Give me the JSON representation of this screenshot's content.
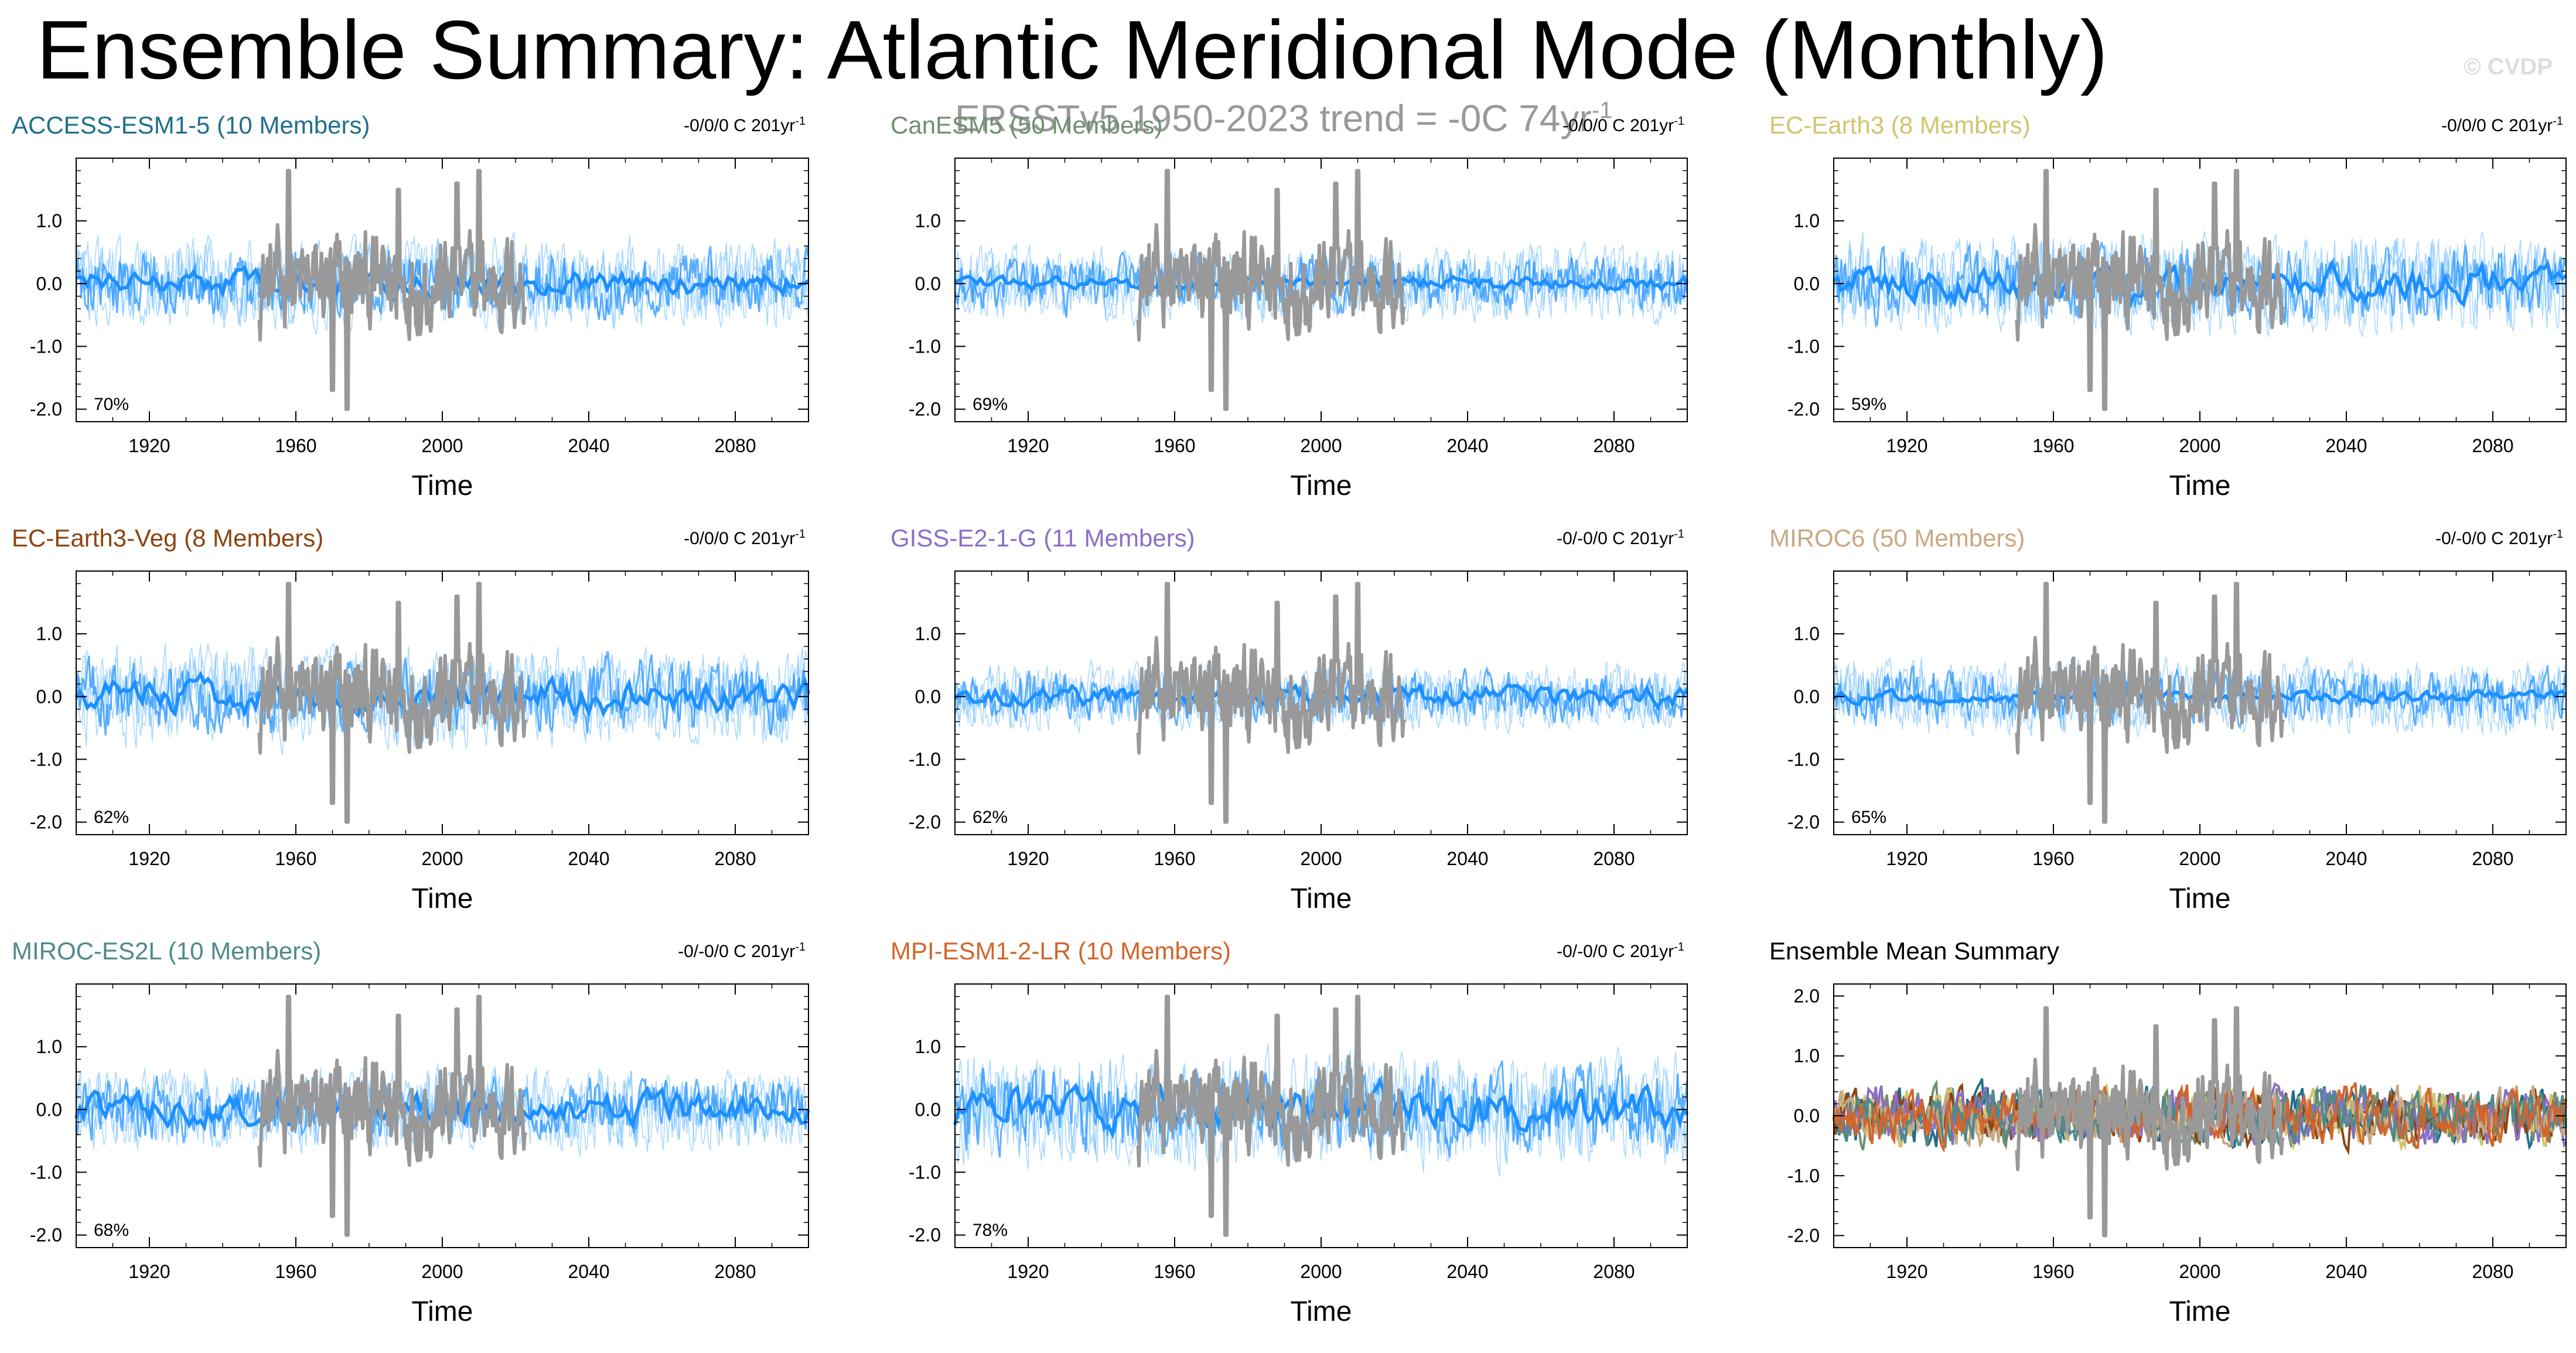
{
  "page": {
    "title": "Ensemble Summary: Atlantic Meridional Mode (Monthly)",
    "observation_note": "ERSSTv5 1950-2023 trend = -0C 74yr",
    "observation_note_superscript": "-1",
    "credit": "© CVDP"
  },
  "colors": {
    "ensemble_spread": "#63b8ff",
    "ensemble_mean": "#1e90ff",
    "observation": "#999999"
  },
  "chart_data": [
    {
      "type": "line",
      "title": "ACCESS-ESM1-5 (10 Members)",
      "title_color": "#1f6f8b",
      "trend_label": "-0/0/0 C 201yr",
      "trend_superscript": "-1",
      "percent_label": "70%",
      "xlabel": "Time",
      "xlim": [
        1900,
        2100
      ],
      "ylim": [
        -2.2,
        2.0
      ],
      "xticks": [
        "1920",
        "1960",
        "2000",
        "2040",
        "2080"
      ],
      "yticks": [
        "-2.0",
        "-1.0",
        "0.0",
        "1.0"
      ],
      "series": [
        {
          "name": "ensemble spread",
          "amplitude": 0.55
        },
        {
          "name": "ensemble mean",
          "amplitude": 0.15
        },
        {
          "name": "ERSSTv5",
          "x_range": [
            1950,
            2023
          ],
          "min": -2.0,
          "max": 1.8
        }
      ]
    },
    {
      "type": "line",
      "title": "CanESM5 (50 Members)",
      "title_color": "#6f8f6f",
      "trend_label": "-0/0/0 C 201yr",
      "trend_superscript": "-1",
      "percent_label": "69%",
      "xlabel": "Time",
      "xlim": [
        1900,
        2100
      ],
      "ylim": [
        -2.2,
        2.0
      ],
      "xticks": [
        "1920",
        "1960",
        "2000",
        "2040",
        "2080"
      ],
      "yticks": [
        "-2.0",
        "-1.0",
        "0.0",
        "1.0"
      ],
      "series": [
        {
          "name": "ensemble spread",
          "amplitude": 0.45
        },
        {
          "name": "ensemble mean",
          "amplitude": 0.08
        },
        {
          "name": "ERSSTv5",
          "x_range": [
            1950,
            2023
          ],
          "min": -2.0,
          "max": 1.8
        }
      ]
    },
    {
      "type": "line",
      "title": "EC-Earth3 (8 Members)",
      "title_color": "#d2c46e",
      "trend_label": "-0/0/0 C 201yr",
      "trend_superscript": "-1",
      "percent_label": "59%",
      "xlabel": "Time",
      "xlim": [
        1900,
        2100
      ],
      "ylim": [
        -2.2,
        2.0
      ],
      "xticks": [
        "1920",
        "1960",
        "2000",
        "2040",
        "2080"
      ],
      "yticks": [
        "-2.0",
        "-1.0",
        "0.0",
        "1.0"
      ],
      "series": [
        {
          "name": "ensemble spread",
          "amplitude": 0.6
        },
        {
          "name": "ensemble mean",
          "amplitude": 0.2
        },
        {
          "name": "ERSSTv5",
          "x_range": [
            1950,
            2023
          ],
          "min": -2.0,
          "max": 1.8
        }
      ]
    },
    {
      "type": "line",
      "title": "EC-Earth3-Veg (8 Members)",
      "title_color": "#8b4513",
      "trend_label": "-0/0/0 C 201yr",
      "trend_superscript": "-1",
      "percent_label": "62%",
      "xlabel": "Time",
      "xlim": [
        1900,
        2100
      ],
      "ylim": [
        -2.2,
        2.0
      ],
      "xticks": [
        "1920",
        "1960",
        "2000",
        "2040",
        "2080"
      ],
      "yticks": [
        "-2.0",
        "-1.0",
        "0.0",
        "1.0"
      ],
      "series": [
        {
          "name": "ensemble spread",
          "amplitude": 0.6
        },
        {
          "name": "ensemble mean",
          "amplitude": 0.2
        },
        {
          "name": "ERSSTv5",
          "x_range": [
            1950,
            2023
          ],
          "min": -2.0,
          "max": 1.8
        }
      ]
    },
    {
      "type": "line",
      "title": "GISS-E2-1-G (11 Members)",
      "title_color": "#8a6fc8",
      "trend_label": "-0/-0/0 C 201yr",
      "trend_superscript": "-1",
      "percent_label": "62%",
      "xlabel": "Time",
      "xlim": [
        1900,
        2100
      ],
      "ylim": [
        -2.2,
        2.0
      ],
      "xticks": [
        "1920",
        "1960",
        "2000",
        "2040",
        "2080"
      ],
      "yticks": [
        "-2.0",
        "-1.0",
        "0.0",
        "1.0"
      ],
      "series": [
        {
          "name": "ensemble spread",
          "amplitude": 0.4
        },
        {
          "name": "ensemble mean",
          "amplitude": 0.12
        },
        {
          "name": "ERSSTv5",
          "x_range": [
            1950,
            2023
          ],
          "min": -2.0,
          "max": 1.8
        }
      ]
    },
    {
      "type": "line",
      "title": "MIROC6 (50 Members)",
      "title_color": "#c8a882",
      "trend_label": "-0/-0/0 C 201yr",
      "trend_superscript": "-1",
      "percent_label": "65%",
      "xlabel": "Time",
      "xlim": [
        1900,
        2100
      ],
      "ylim": [
        -2.2,
        2.0
      ],
      "xticks": [
        "1920",
        "1960",
        "2000",
        "2040",
        "2080"
      ],
      "yticks": [
        "-2.0",
        "-1.0",
        "0.0",
        "1.0"
      ],
      "series": [
        {
          "name": "ensemble spread",
          "amplitude": 0.45
        },
        {
          "name": "ensemble mean",
          "amplitude": 0.07
        },
        {
          "name": "ERSSTv5",
          "x_range": [
            1950,
            2023
          ],
          "min": -2.0,
          "max": 1.8
        }
      ]
    },
    {
      "type": "line",
      "title": "MIROC-ES2L (10 Members)",
      "title_color": "#4f8a8b",
      "trend_label": "-0/-0/0 C 201yr",
      "trend_superscript": "-1",
      "percent_label": "68%",
      "xlabel": "Time",
      "xlim": [
        1900,
        2100
      ],
      "ylim": [
        -2.2,
        2.0
      ],
      "xticks": [
        "1920",
        "1960",
        "2000",
        "2040",
        "2080"
      ],
      "yticks": [
        "-2.0",
        "-1.0",
        "0.0",
        "1.0"
      ],
      "series": [
        {
          "name": "ensemble spread",
          "amplitude": 0.5
        },
        {
          "name": "ensemble mean",
          "amplitude": 0.18
        },
        {
          "name": "ERSSTv5",
          "x_range": [
            1950,
            2023
          ],
          "min": -2.0,
          "max": 1.8
        }
      ]
    },
    {
      "type": "line",
      "title": "MPI-ESM1-2-LR (10 Members)",
      "title_color": "#d2652d",
      "trend_label": "-0/-0/0 C 201yr",
      "trend_superscript": "-1",
      "percent_label": "78%",
      "xlabel": "Time",
      "xlim": [
        1900,
        2100
      ],
      "ylim": [
        -2.2,
        2.0
      ],
      "xticks": [
        "1920",
        "1960",
        "2000",
        "2040",
        "2080"
      ],
      "yticks": [
        "-2.0",
        "-1.0",
        "0.0",
        "1.0"
      ],
      "series": [
        {
          "name": "ensemble spread",
          "amplitude": 0.7
        },
        {
          "name": "ensemble mean",
          "amplitude": 0.25
        },
        {
          "name": "ERSSTv5",
          "x_range": [
            1950,
            2023
          ],
          "min": -2.0,
          "max": 1.8
        }
      ]
    },
    {
      "type": "line",
      "title": "Ensemble Mean Summary",
      "title_color": "#000000",
      "trend_label": "",
      "trend_superscript": "",
      "percent_label": "",
      "xlabel": "Time",
      "xlim": [
        1900,
        2100
      ],
      "ylim": [
        -2.2,
        2.2
      ],
      "xticks": [
        "1920",
        "1960",
        "2000",
        "2040",
        "2080"
      ],
      "yticks": [
        "-2.0",
        "-1.0",
        "0.0",
        "1.0",
        "2.0"
      ],
      "series": [
        {
          "name": "ACCESS-ESM1-5",
          "color": "#1f6f8b"
        },
        {
          "name": "CanESM5",
          "color": "#6f8f6f"
        },
        {
          "name": "EC-Earth3",
          "color": "#d2c46e"
        },
        {
          "name": "EC-Earth3-Veg",
          "color": "#8b4513"
        },
        {
          "name": "GISS-E2-1-G",
          "color": "#8a6fc8"
        },
        {
          "name": "MIROC6",
          "color": "#c8a882"
        },
        {
          "name": "MIROC-ES2L",
          "color": "#4f8a8b"
        },
        {
          "name": "MPI-ESM1-2-LR",
          "color": "#d2652d"
        },
        {
          "name": "ERSSTv5",
          "x_range": [
            1950,
            2023
          ],
          "min": -2.0,
          "max": 1.8
        }
      ]
    }
  ]
}
